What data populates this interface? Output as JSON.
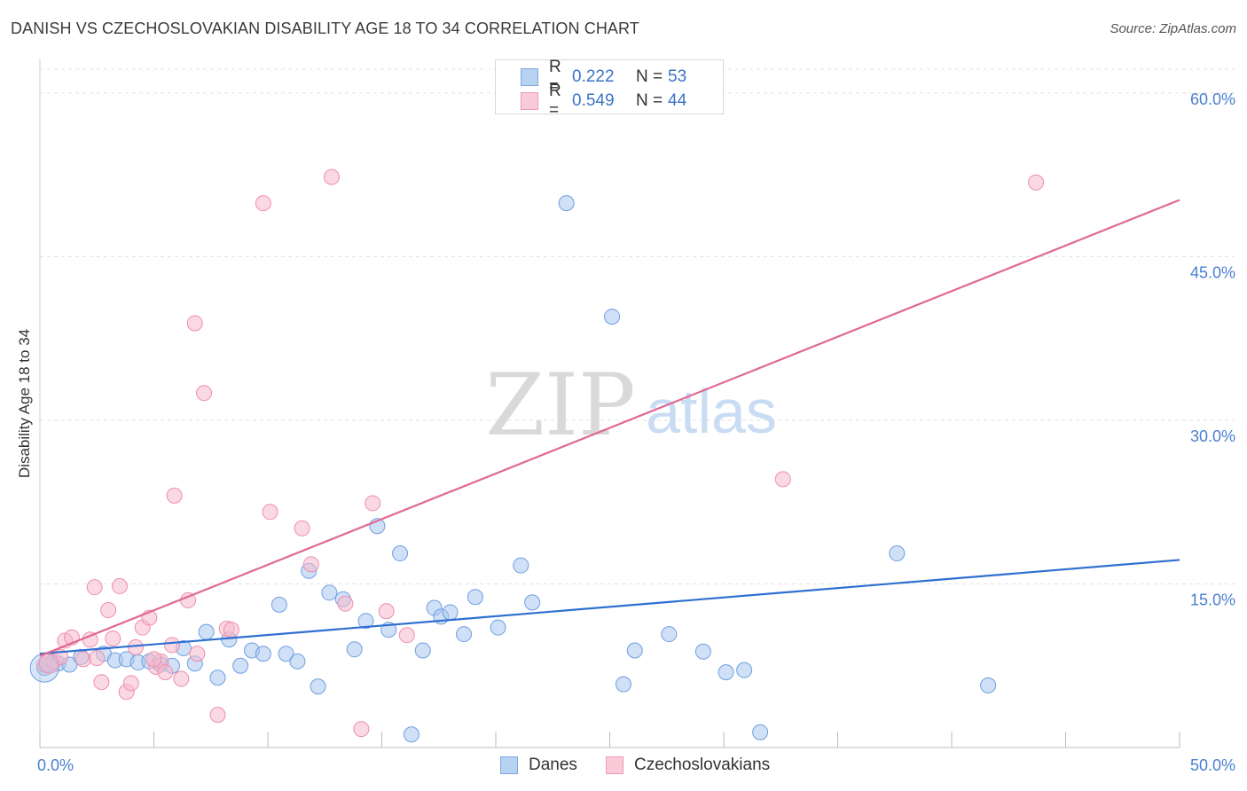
{
  "title": "DANISH VS CZECHOSLOVAKIAN DISABILITY AGE 18 TO 34 CORRELATION CHART",
  "source": "Source: ZipAtlas.com",
  "watermark": {
    "zip": "ZIP",
    "atlas": "atlas"
  },
  "legend_top": [
    {
      "r_label": "R =",
      "r_value": "0.222",
      "n_label": "N =",
      "n_value": "53",
      "color": "#a9c6ee"
    },
    {
      "r_label": "R =",
      "r_value": "0.549",
      "n_label": "N =",
      "n_value": "44",
      "color": "#f6b9cc"
    }
  ],
  "legend_bottom": [
    {
      "label": "Danes",
      "color": "#a9c6ee"
    },
    {
      "label": "Czechoslovakians",
      "color": "#f6b9cc"
    }
  ],
  "chart_data": {
    "type": "scatter",
    "title": "DANISH VS CZECHOSLOVAKIAN DISABILITY AGE 18 TO 34 CORRELATION CHART",
    "xlabel": "",
    "ylabel": "Disability Age 18 to 34",
    "xlim": [
      0,
      50
    ],
    "ylim": [
      0,
      63
    ],
    "x_tick_labels": [
      "0.0%",
      "50.0%"
    ],
    "y_tick_values": [
      15,
      30,
      45,
      60
    ],
    "y_tick_labels": [
      "15.0%",
      "30.0%",
      "45.0%",
      "60.0%"
    ],
    "series": [
      {
        "name": "Danes",
        "color": "#6f9fe0",
        "fill": "#a9c6ee",
        "trend": {
          "x": [
            0,
            50
          ],
          "y": [
            8.6,
            17.2
          ],
          "color": "#2f6fd1"
        },
        "points": [
          [
            0.2,
            7.3
          ],
          [
            0.4,
            7.6
          ],
          [
            0.8,
            7.7
          ],
          [
            1.3,
            7.6
          ],
          [
            1.8,
            8.3
          ],
          [
            2.8,
            8.6
          ],
          [
            3.3,
            8.0
          ],
          [
            3.8,
            8.1
          ],
          [
            4.3,
            7.8
          ],
          [
            4.8,
            7.9
          ],
          [
            5.3,
            7.6
          ],
          [
            5.8,
            7.5
          ],
          [
            6.3,
            9.1
          ],
          [
            6.8,
            7.7
          ],
          [
            7.3,
            10.6
          ],
          [
            7.8,
            6.4
          ],
          [
            8.3,
            9.9
          ],
          [
            8.8,
            7.5
          ],
          [
            9.3,
            8.9
          ],
          [
            9.8,
            8.6
          ],
          [
            10.5,
            13.1
          ],
          [
            10.8,
            8.6
          ],
          [
            11.3,
            7.9
          ],
          [
            11.8,
            16.2
          ],
          [
            12.2,
            5.6
          ],
          [
            12.7,
            14.2
          ],
          [
            13.3,
            13.6
          ],
          [
            13.8,
            9.0
          ],
          [
            14.3,
            11.6
          ],
          [
            14.8,
            20.3
          ],
          [
            15.3,
            10.8
          ],
          [
            15.8,
            17.8
          ],
          [
            16.3,
            1.2
          ],
          [
            16.8,
            8.9
          ],
          [
            17.3,
            12.8
          ],
          [
            17.6,
            12.0
          ],
          [
            18.0,
            12.4
          ],
          [
            18.6,
            10.4
          ],
          [
            19.1,
            13.8
          ],
          [
            20.1,
            11.0
          ],
          [
            21.1,
            16.7
          ],
          [
            21.6,
            13.3
          ],
          [
            23.1,
            49.9
          ],
          [
            25.1,
            39.5
          ],
          [
            25.6,
            5.8
          ],
          [
            26.1,
            8.9
          ],
          [
            27.6,
            10.4
          ],
          [
            29.1,
            8.8
          ],
          [
            30.1,
            6.9
          ],
          [
            30.9,
            7.1
          ],
          [
            31.6,
            1.4
          ],
          [
            37.6,
            17.8
          ],
          [
            41.6,
            5.7
          ]
        ]
      },
      {
        "name": "Czechoslovakians",
        "color": "#ee8fae",
        "fill": "#f6b9cc",
        "trend": {
          "x": [
            0,
            50
          ],
          "y": [
            8.4,
            50.2
          ],
          "color": "#e06893"
        },
        "points": [
          [
            0.2,
            7.6
          ],
          [
            0.6,
            7.9
          ],
          [
            1.1,
            9.8
          ],
          [
            1.4,
            10.1
          ],
          [
            1.9,
            8.1
          ],
          [
            2.2,
            9.9
          ],
          [
            2.4,
            14.7
          ],
          [
            2.7,
            6.0
          ],
          [
            3.0,
            12.6
          ],
          [
            3.2,
            10.0
          ],
          [
            3.5,
            14.8
          ],
          [
            3.8,
            5.1
          ],
          [
            4.0,
            5.9
          ],
          [
            4.2,
            9.2
          ],
          [
            4.5,
            11.0
          ],
          [
            4.8,
            11.9
          ],
          [
            5.1,
            7.4
          ],
          [
            5.3,
            7.9
          ],
          [
            5.5,
            6.9
          ],
          [
            5.8,
            9.4
          ],
          [
            5.9,
            23.1
          ],
          [
            6.2,
            6.3
          ],
          [
            6.5,
            13.5
          ],
          [
            6.8,
            38.9
          ],
          [
            6.9,
            8.6
          ],
          [
            7.2,
            32.5
          ],
          [
            7.8,
            3.0
          ],
          [
            8.2,
            10.9
          ],
          [
            8.4,
            10.8
          ],
          [
            9.8,
            49.9
          ],
          [
            10.1,
            21.6
          ],
          [
            11.5,
            20.1
          ],
          [
            11.9,
            16.8
          ],
          [
            12.8,
            52.3
          ],
          [
            13.4,
            13.2
          ],
          [
            14.1,
            1.7
          ],
          [
            14.6,
            22.4
          ],
          [
            15.2,
            12.5
          ],
          [
            16.1,
            10.3
          ],
          [
            32.6,
            24.6
          ],
          [
            43.7,
            51.8
          ],
          [
            2.5,
            8.2
          ],
          [
            0.9,
            8.3
          ],
          [
            5.0,
            8.1
          ]
        ]
      }
    ]
  }
}
